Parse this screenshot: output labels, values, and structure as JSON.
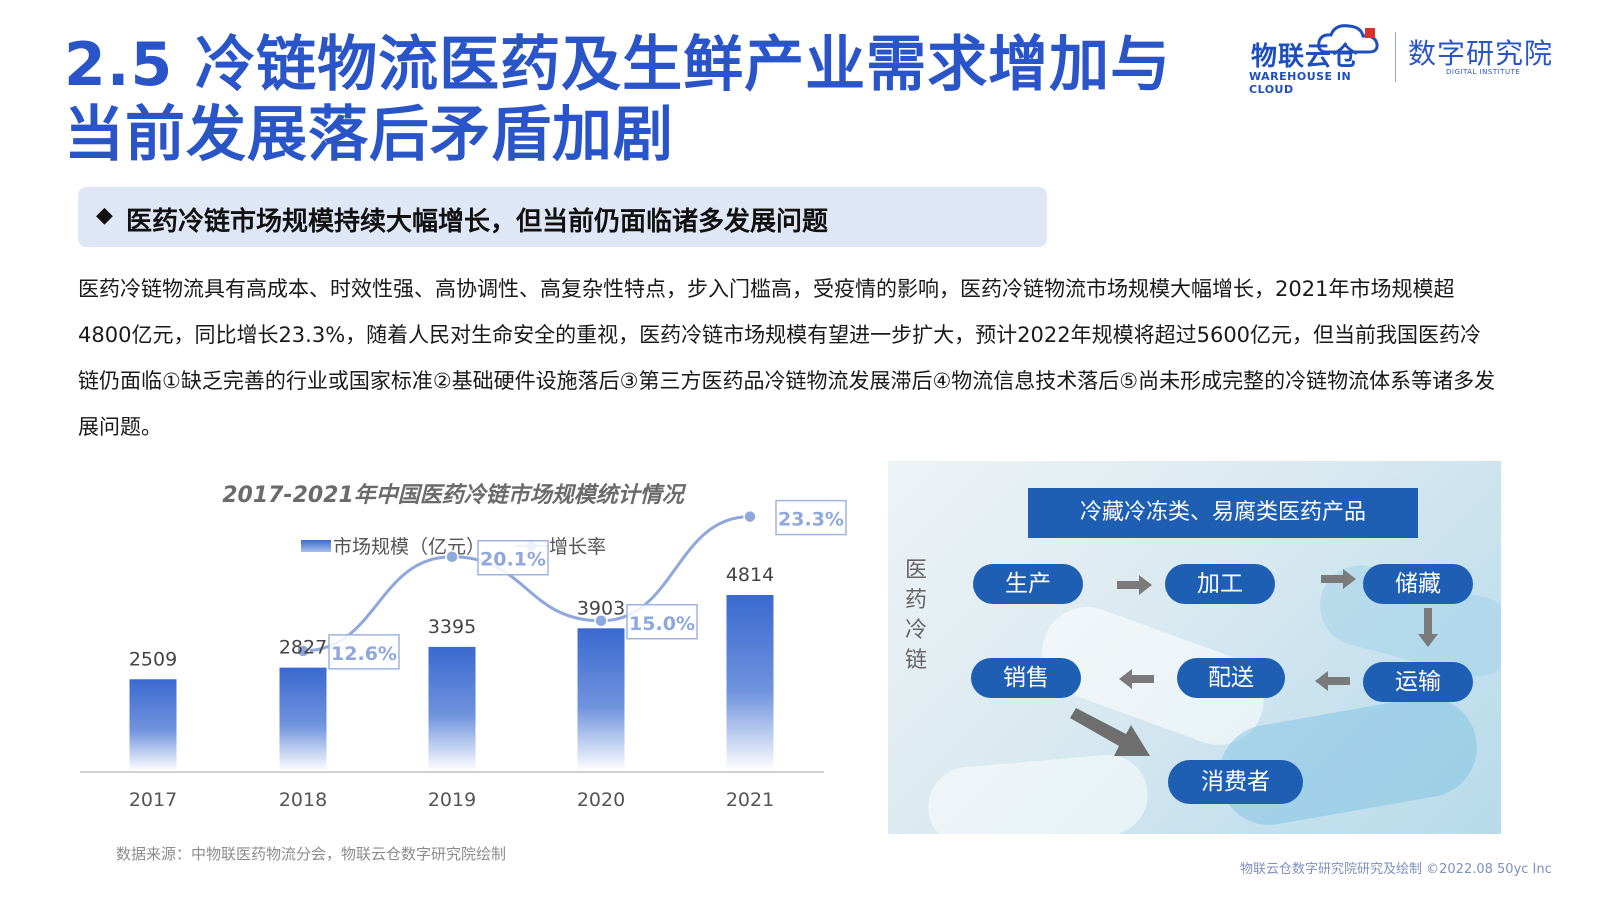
{
  "title": "2.5 冷链物流医药及生鲜产业需求增加与当前发展落后矛盾加剧",
  "logo1": {
    "main": "物联云仓",
    "sub": "WAREHOUSE IN CLOUD"
  },
  "logo2": {
    "main": "数字研究院",
    "sub": "DIGITAL INSTITUTE"
  },
  "subhead": {
    "bullet": "◆",
    "text": "医药冷链市场规模持续大幅增长，但当前仍面临诸多发展问题"
  },
  "body": "医药冷链物流具有高成本、时效性强、高协调性、高复杂性特点，步入门槛高，受疫情的影响，医药冷链物流市场规模大幅增长，2021年市场规模超4800亿元，同比增长23.3%，随着人民对生命安全的重视，医药冷链市场规模有望进一步扩大，预计2022年规模将超过5600亿元，但当前我国医药冷链仍面临①缺乏完善的行业或国家标准②基础硬件设施落后③第三方医药品冷链物流发展滞后④物流信息技术落后⑤尚未形成完整的冷链物流体系等诸多发展问题。",
  "chart_data": {
    "type": "bar",
    "title": "2017-2021年中国医药冷链市场规模统计情况",
    "categories": [
      "2017",
      "2018",
      "2019",
      "2020",
      "2021"
    ],
    "series": [
      {
        "name": "市场规模（亿元）",
        "type": "bar",
        "values": [
          2509,
          2827,
          3395,
          3903,
          4814
        ],
        "color": "#3d6fd0"
      },
      {
        "name": "增长率",
        "type": "line",
        "values": [
          null,
          12.6,
          20.1,
          15.0,
          23.3
        ],
        "labels": [
          "",
          "12.6%",
          "20.1%",
          "15.0%",
          "23.3%"
        ],
        "color": "#8ea7dc"
      }
    ],
    "legend": "top-center",
    "grid": false,
    "ylim": [
      0,
      5000
    ]
  },
  "diagram": {
    "side_label": [
      "医",
      "药",
      "冷",
      "链"
    ],
    "header": "冷藏冷冻类、易腐类医药产品",
    "nodes": {
      "produce": "生产",
      "process": "加工",
      "store": "储藏",
      "sell": "销售",
      "deliver": "配送",
      "transport": "运输",
      "consumer": "消费者"
    },
    "color": "#1f5fb3"
  },
  "source": "数据来源：中物联医药物流分会，物联云仓数字研究院绘制",
  "footer": "物联云仓数字研究院研究及绘制    ©2022.08 50yc Inc"
}
